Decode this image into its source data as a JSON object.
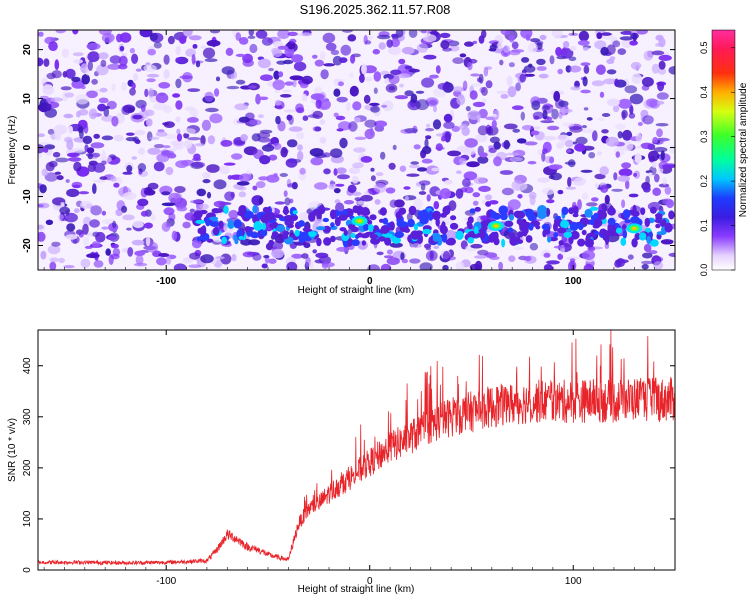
{
  "title": "S196.2025.362.11.57.R08",
  "colors": {
    "background": "#ffffff",
    "snr_line": "#e8242a",
    "colormap_low": "#ffffff",
    "colormap_mid": "#5a1fd9",
    "colormap_high": "#ff2da0"
  },
  "chart_data": [
    {
      "type": "heatmap",
      "name": "spectrogram",
      "xlabel": "Height of straight line (km)",
      "ylabel": "Frequency (Hz)",
      "xlim": [
        -163,
        150
      ],
      "ylim": [
        -25,
        24
      ],
      "x_ticks": [
        "-100",
        "0",
        "100"
      ],
      "x_tick_values": [
        -100,
        0,
        100
      ],
      "y_ticks": [
        "20",
        "10",
        "0",
        "-10",
        "-20"
      ],
      "y_tick_values": [
        20,
        10,
        0,
        -10,
        -20
      ],
      "colorbar": {
        "label": "Normalized spectral amplitude",
        "range": [
          0,
          0.54
        ],
        "ticks": [
          "0.0",
          "0.1",
          "0.2",
          "0.3",
          "0.4",
          "0.5"
        ],
        "tick_values": [
          0.0,
          0.1,
          0.2,
          0.3,
          0.4,
          0.5
        ],
        "colormap": "white-purple-blue-cyan-green-yellow-red-pink"
      },
      "features": {
        "signal_band_frequency_hz": -16,
        "signal_band_start_km": -85,
        "peak_amplitude_points": [
          {
            "x": -5,
            "y": -15,
            "amplitude": 0.3
          },
          {
            "x": 62,
            "y": -16,
            "amplitude": 0.28
          },
          {
            "x": 130,
            "y": -16.5,
            "amplitude": 0.3
          }
        ]
      }
    },
    {
      "type": "line",
      "name": "snr",
      "xlabel": "Height of straight line (km)",
      "ylabel": "SNR (10 * v/v)",
      "xlim": [
        -163,
        150
      ],
      "ylim": [
        0,
        470
      ],
      "x_ticks": [
        "-100",
        "0",
        "100"
      ],
      "x_tick_values": [
        -100,
        0,
        100
      ],
      "y_ticks": [
        "0",
        "100",
        "200",
        "300",
        "400"
      ],
      "y_tick_values": [
        0,
        100,
        200,
        300,
        400
      ],
      "series": [
        {
          "x": [
            -163,
            -140,
            -120,
            -100,
            -80,
            -75,
            -70,
            -65,
            -60,
            -55,
            -50,
            -45,
            -40,
            -35,
            -30,
            -25,
            -20,
            -15,
            -10,
            -5,
            0,
            10,
            20,
            30,
            40,
            50,
            60,
            70,
            80,
            90,
            100,
            110,
            120,
            130,
            140,
            150
          ],
          "y": [
            15,
            15,
            14,
            15,
            18,
            40,
            70,
            60,
            45,
            40,
            30,
            25,
            20,
            90,
            120,
            130,
            150,
            165,
            180,
            195,
            210,
            240,
            260,
            285,
            300,
            310,
            320,
            325,
            330,
            330,
            330,
            332,
            330,
            335,
            332,
            335
          ]
        }
      ]
    }
  ]
}
